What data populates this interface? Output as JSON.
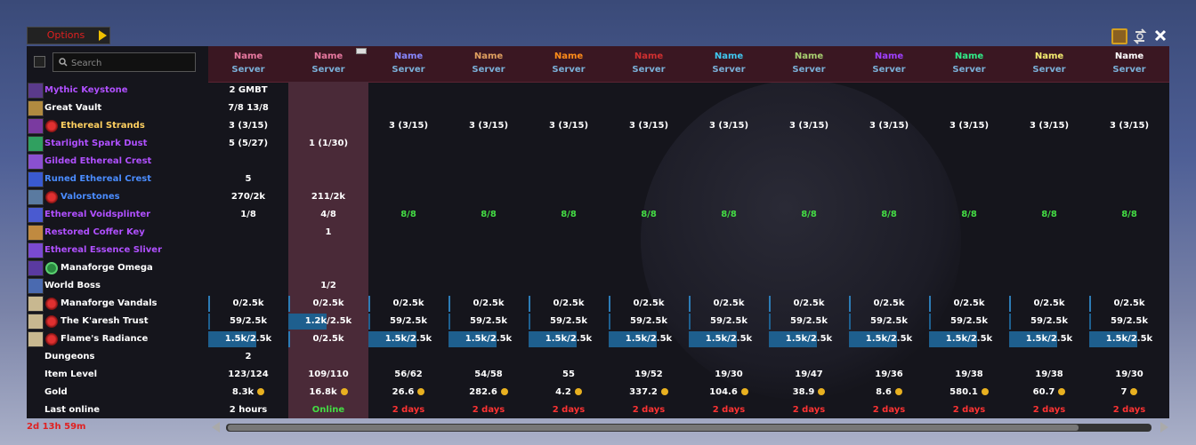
{
  "options": {
    "label": "Options"
  },
  "search": {
    "placeholder": "Search"
  },
  "timer": "2d 13h 59m",
  "colors": {
    "accent": "#3a1722",
    "online": "#4a2a38",
    "bar": "#1e5f8e",
    "good": "#44dd44",
    "bad": "#ff3333",
    "gold": "#e8b020"
  },
  "columns": [
    {
      "name": "Name",
      "server": "Server",
      "color": "#e879a0"
    },
    {
      "name": "Name",
      "server": "Server",
      "color": "#e879a0"
    },
    {
      "name": "Name",
      "server": "Server",
      "color": "#8888ff"
    },
    {
      "name": "Name",
      "server": "Server",
      "color": "#e0a060"
    },
    {
      "name": "Name",
      "server": "Server",
      "color": "#ff8c1a"
    },
    {
      "name": "Name",
      "server": "Server",
      "color": "#d03030"
    },
    {
      "name": "Name",
      "server": "Server",
      "color": "#40c8f0"
    },
    {
      "name": "Name",
      "server": "Server",
      "color": "#a8d070"
    },
    {
      "name": "Name",
      "server": "Server",
      "color": "#a040ff"
    },
    {
      "name": "Name",
      "server": "Server",
      "color": "#30ee88"
    },
    {
      "name": "Name",
      "server": "Server",
      "color": "#f4ec70"
    },
    {
      "name": "Name",
      "server": "Server",
      "color": "#ffffff"
    }
  ],
  "rows": [
    {
      "label": "Mythic Keystone",
      "color": "#b050ff",
      "icon": "keystone-icon",
      "cells": [
        "2 GMBT",
        "",
        "",
        "",
        "",
        "",
        "",
        "",
        "",
        "",
        "",
        ""
      ]
    },
    {
      "label": "Great Vault",
      "color": "#ffffff",
      "icon": "vault-icon",
      "cells": [
        "7/8 13/8",
        "",
        "",
        "",
        "",
        "",
        "",
        "",
        "",
        "",
        "",
        ""
      ]
    },
    {
      "label": "Ethereal Strands",
      "color": "#ffd060",
      "icon": "strands-icon",
      "sub_icon": "faction-icon",
      "cells": [
        "3 (3/15)",
        "",
        "3 (3/15)",
        "3 (3/15)",
        "3 (3/15)",
        "3 (3/15)",
        "3 (3/15)",
        "3 (3/15)",
        "3 (3/15)",
        "3 (3/15)",
        "3 (3/15)",
        "3 (3/15)"
      ]
    },
    {
      "label": "Starlight Spark Dust",
      "color": "#b050ff",
      "icon": "spark-dust-icon",
      "cells": [
        "5 (5/27)",
        "1 (1/30)",
        "",
        "",
        "",
        "",
        "",
        "",
        "",
        "",
        "",
        ""
      ]
    },
    {
      "label": "Gilded Ethereal Crest",
      "color": "#b050ff",
      "icon": "gilded-crest-icon",
      "cells": [
        "",
        "",
        "",
        "",
        "",
        "",
        "",
        "",
        "",
        "",
        "",
        ""
      ]
    },
    {
      "label": "Runed Ethereal Crest",
      "color": "#4a8cff",
      "icon": "runed-crest-icon",
      "cells": [
        "5",
        "",
        "",
        "",
        "",
        "",
        "",
        "",
        "",
        "",
        "",
        ""
      ]
    },
    {
      "label": "Valorstones",
      "color": "#4a8cff",
      "icon": "valorstone-icon",
      "sub_icon": "faction-icon",
      "cells": [
        "270/2k",
        "211/2k",
        "",
        "",
        "",
        "",
        "",
        "",
        "",
        "",
        "",
        ""
      ]
    },
    {
      "label": "Ethereal Voidsplinter",
      "color": "#b050ff",
      "icon": "voidsplinter-icon",
      "cells": [
        "1/8",
        "4/8",
        "8/8",
        "8/8",
        "8/8",
        "8/8",
        "8/8",
        "8/8",
        "8/8",
        "8/8",
        "8/8",
        "8/8"
      ]
    },
    {
      "label": "Restored Coffer Key",
      "color": "#b050ff",
      "icon": "coffer-key-icon",
      "cells": [
        "",
        "1",
        "",
        "",
        "",
        "",
        "",
        "",
        "",
        "",
        "",
        ""
      ]
    },
    {
      "label": "Ethereal Essence Sliver",
      "color": "#b050ff",
      "icon": "essence-sliver-icon",
      "cells": [
        "",
        "",
        "",
        "",
        "",
        "",
        "",
        "",
        "",
        "",
        "",
        ""
      ]
    },
    {
      "label": "Manaforge Omega",
      "color": "#ffffff",
      "icon": "manaforge-icon",
      "sub_icon": "spiral-icon",
      "cells": [
        "",
        "",
        "",
        "",
        "",
        "",
        "",
        "",
        "",
        "",
        "",
        ""
      ]
    },
    {
      "label": "World Boss",
      "color": "#ffffff",
      "icon": "world-boss-icon",
      "cells": [
        "",
        "1/2",
        "",
        "",
        "",
        "",
        "",
        "",
        "",
        "",
        "",
        ""
      ]
    },
    {
      "label": "Manaforge Vandals",
      "color": "#ffffff",
      "icon": "vandals-icon",
      "sub_icon": "faction-icon",
      "cells": [
        "0/2.5k",
        "0/2.5k",
        "0/2.5k",
        "0/2.5k",
        "0/2.5k",
        "0/2.5k",
        "0/2.5k",
        "0/2.5k",
        "0/2.5k",
        "0/2.5k",
        "0/2.5k",
        "0/2.5k"
      ],
      "progress": [
        0,
        0,
        0,
        0,
        0,
        0,
        0,
        0,
        0,
        0,
        0,
        0
      ]
    },
    {
      "label": "The K'aresh Trust",
      "color": "#ffffff",
      "icon": "karesh-icon",
      "sub_icon": "faction-icon",
      "cells": [
        "59/2.5k",
        "1.2k/2.5k",
        "59/2.5k",
        "59/2.5k",
        "59/2.5k",
        "59/2.5k",
        "59/2.5k",
        "59/2.5k",
        "59/2.5k",
        "59/2.5k",
        "59/2.5k",
        "59/2.5k"
      ],
      "progress": [
        0.024,
        0.48,
        0.024,
        0.024,
        0.024,
        0.024,
        0.024,
        0.024,
        0.024,
        0.024,
        0.024,
        0.024
      ]
    },
    {
      "label": "Flame's Radiance",
      "color": "#ffffff",
      "icon": "radiance-icon",
      "sub_icon": "faction-icon",
      "cells": [
        "1.5k/2.5k",
        "0/2.5k",
        "1.5k/2.5k",
        "1.5k/2.5k",
        "1.5k/2.5k",
        "1.5k/2.5k",
        "1.5k/2.5k",
        "1.5k/2.5k",
        "1.5k/2.5k",
        "1.5k/2.5k",
        "1.5k/2.5k",
        "1.5k/2.5k"
      ],
      "progress": [
        0.6,
        0,
        0.6,
        0.6,
        0.6,
        0.6,
        0.6,
        0.6,
        0.6,
        0.6,
        0.6,
        0.6
      ]
    },
    {
      "label": "Dungeons",
      "color": "#ffffff",
      "cells": [
        "2",
        "",
        "",
        "",
        "",
        "",
        "",
        "",
        "",
        "",
        "",
        ""
      ]
    },
    {
      "label": "Item Level",
      "color": "#ffffff",
      "cells": [
        "123/124",
        "109/110",
        "56/62",
        "54/58",
        "55",
        "19/52",
        "19/30",
        "19/47",
        "19/36",
        "19/38",
        "19/38",
        "19/30"
      ]
    },
    {
      "label": "Gold",
      "color": "#ffffff",
      "gold": true,
      "cells": [
        "8.3k",
        "16.8k",
        "26.6",
        "282.6",
        "4.2",
        "337.2",
        "104.6",
        "38.9",
        "8.6",
        "580.1",
        "60.7",
        "7"
      ]
    },
    {
      "label": "Last online",
      "color": "#ffffff",
      "cells": [
        "2 hours",
        "Online",
        "2 days",
        "2 days",
        "2 days",
        "2 days",
        "2 days",
        "2 days",
        "2 days",
        "2 days",
        "2 days",
        "2 days"
      ]
    }
  ]
}
